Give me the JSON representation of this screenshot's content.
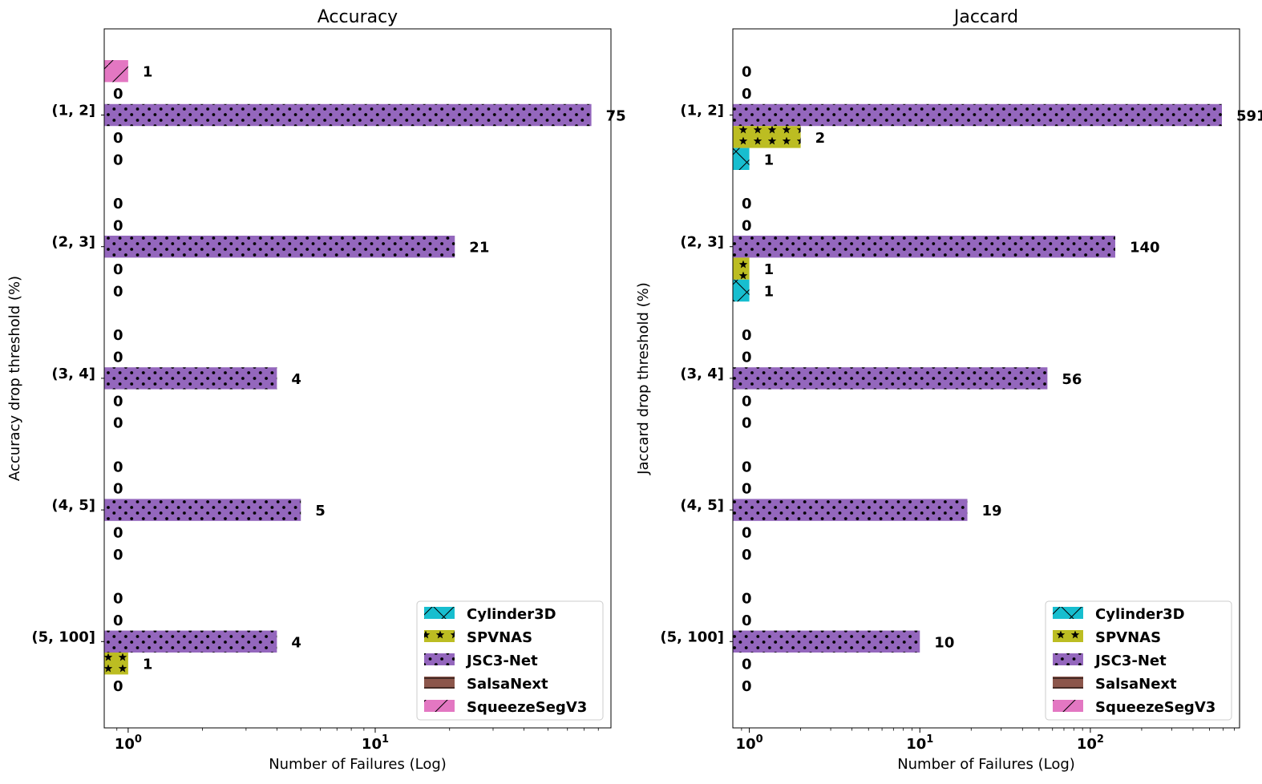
{
  "series_styles": [
    {
      "name": "Cylinder3D",
      "color": "#17becf",
      "hatch": "x"
    },
    {
      "name": "SPVNAS",
      "color": "#bcbd22",
      "hatch": "star"
    },
    {
      "name": "JSC3-Net",
      "color": "#9467bd",
      "hatch": "dot"
    },
    {
      "name": "SalsaNext",
      "color": "#8c564b",
      "hatch": "hline"
    },
    {
      "name": "SqueezeSegV3",
      "color": "#e377c2",
      "hatch": "slash"
    }
  ],
  "chart_data": [
    {
      "type": "bar",
      "orientation": "horizontal",
      "title": "Accuracy",
      "xlabel": "Number of Failures (Log)",
      "ylabel": "Accuracy drop threshold (%)",
      "xscale": "log",
      "xlim": [
        0.8,
        90
      ],
      "xticks": [
        {
          "base": "10",
          "exp": "0",
          "value": 1
        },
        {
          "base": "10",
          "exp": "1",
          "value": 10
        }
      ],
      "legend_position": "lower-right",
      "categories": [
        "(1, 2]",
        "(2, 3]",
        "(3, 4]",
        "(4, 5]",
        "(5, 100]"
      ],
      "series": [
        {
          "name": "Cylinder3D",
          "values": [
            0,
            0,
            0,
            0,
            0
          ]
        },
        {
          "name": "SPVNAS",
          "values": [
            0,
            0,
            0,
            0,
            1
          ]
        },
        {
          "name": "JSC3-Net",
          "values": [
            75,
            21,
            4,
            5,
            4
          ]
        },
        {
          "name": "SalsaNext",
          "values": [
            0,
            0,
            0,
            0,
            0
          ]
        },
        {
          "name": "SqueezeSegV3",
          "values": [
            1,
            0,
            0,
            0,
            0
          ]
        }
      ]
    },
    {
      "type": "bar",
      "orientation": "horizontal",
      "title": "Jaccard",
      "xlabel": "Number of Failures (Log)",
      "ylabel": "Jaccard drop threshold (%)",
      "xscale": "log",
      "xlim": [
        0.8,
        750
      ],
      "xticks": [
        {
          "base": "10",
          "exp": "0",
          "value": 1
        },
        {
          "base": "10",
          "exp": "1",
          "value": 10
        },
        {
          "base": "10",
          "exp": "2",
          "value": 100
        }
      ],
      "legend_position": "lower-right",
      "categories": [
        "(1, 2]",
        "(2, 3]",
        "(3, 4]",
        "(4, 5]",
        "(5, 100]"
      ],
      "series": [
        {
          "name": "Cylinder3D",
          "values": [
            1,
            1,
            0,
            0,
            0
          ]
        },
        {
          "name": "SPVNAS",
          "values": [
            2,
            1,
            0,
            0,
            0
          ]
        },
        {
          "name": "JSC3-Net",
          "values": [
            591,
            140,
            56,
            19,
            10
          ]
        },
        {
          "name": "SalsaNext",
          "values": [
            0,
            0,
            0,
            0,
            0
          ]
        },
        {
          "name": "SqueezeSegV3",
          "values": [
            0,
            0,
            0,
            0,
            0
          ]
        }
      ]
    }
  ]
}
